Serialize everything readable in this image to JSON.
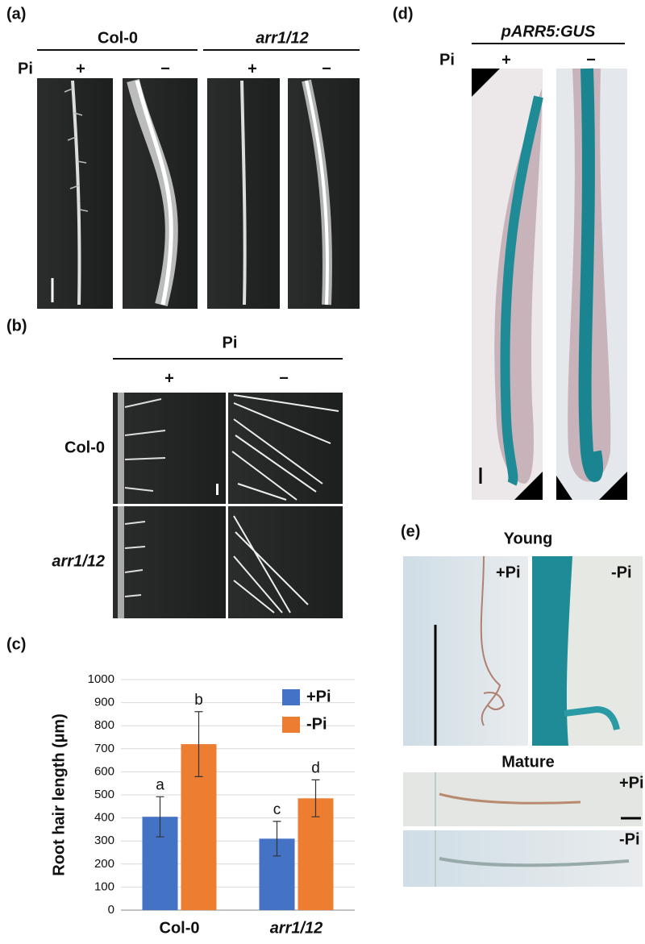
{
  "panel_a": {
    "label": "(a)",
    "row_label": "Pi",
    "genotypes": [
      "Col-0",
      "arr1/12"
    ],
    "conditions": [
      "+",
      "−",
      "+",
      "−"
    ]
  },
  "panel_b": {
    "label": "(b)",
    "column_header": "Pi",
    "conditions": [
      "+",
      "−"
    ],
    "genotypes": [
      "Col-0",
      "arr1/12"
    ]
  },
  "panel_d": {
    "label": "(d)",
    "construct": "pARR5:GUS",
    "row_label": "Pi",
    "conditions": [
      "+",
      "−"
    ]
  },
  "panel_e": {
    "label": "(e)",
    "groups": [
      {
        "title": "Young",
        "conditions": [
          "+Pi",
          "-Pi"
        ]
      },
      {
        "title": "Mature",
        "conditions": [
          "+Pi",
          "-Pi"
        ]
      }
    ]
  },
  "chart_data": {
    "type": "bar",
    "panel_label": "(c)",
    "y_label": "Root hair length (µm)",
    "categories": [
      "Col-0",
      "arr1/12"
    ],
    "series": [
      {
        "name": "+Pi",
        "color": "#4472c4",
        "values": [
          405,
          310
        ],
        "errors": [
          87,
          75
        ],
        "significance_labels": [
          "a",
          "c"
        ]
      },
      {
        "name": "-Pi",
        "color": "#ed7d31",
        "values": [
          720,
          485
        ],
        "errors": [
          141,
          80
        ],
        "significance_labels": [
          "b",
          "d"
        ]
      }
    ],
    "ylim": [
      0,
      1000
    ],
    "yticks": [
      0,
      100,
      200,
      300,
      400,
      500,
      600,
      700,
      800,
      900,
      1000
    ],
    "grid": true,
    "legend": "top-right"
  }
}
